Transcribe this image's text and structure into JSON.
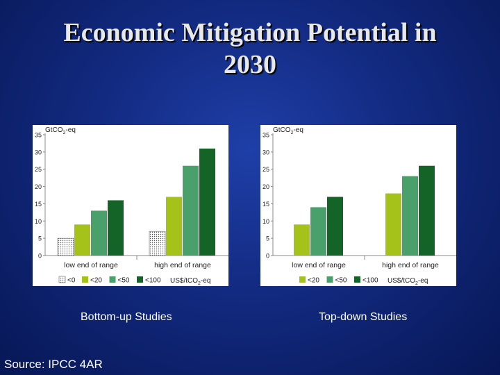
{
  "slide": {
    "title_line1": "Economic Mitigation Potential in",
    "title_line2": "2030",
    "source": "Source: IPCC 4AR"
  },
  "colors": {
    "background": "#122a80",
    "lt0": "#ffffff",
    "lt20": "#a4c21a",
    "lt50": "#4aa06a",
    "lt100": "#146428"
  },
  "chart_data": [
    {
      "type": "bar",
      "title": "Bottom-up Studies",
      "ylabel": "GtCO2-eq",
      "ylim": [
        0,
        35
      ],
      "yticks": [
        0,
        5,
        10,
        15,
        20,
        25,
        30,
        35
      ],
      "categories": [
        "low end of range",
        "high end of range"
      ],
      "series": [
        {
          "name": "<0",
          "values": [
            5,
            7
          ],
          "pattern": "dots"
        },
        {
          "name": "<20",
          "values": [
            9,
            17
          ]
        },
        {
          "name": "<50",
          "values": [
            13,
            26
          ]
        },
        {
          "name": "<100",
          "values": [
            16,
            31
          ]
        }
      ],
      "units_label": "US$/tCO2-eq"
    },
    {
      "type": "bar",
      "title": "Top-down Studies",
      "ylabel": "GtCO2-eq",
      "ylim": [
        0,
        35
      ],
      "yticks": [
        0,
        5,
        10,
        15,
        20,
        25,
        30,
        35
      ],
      "categories": [
        "low end of range",
        "high end of range"
      ],
      "series": [
        {
          "name": "<20",
          "values": [
            9,
            18
          ]
        },
        {
          "name": "<50",
          "values": [
            14,
            23
          ]
        },
        {
          "name": "<100",
          "values": [
            17,
            26
          ]
        }
      ],
      "units_label": "US$/tCO2-eq"
    }
  ]
}
